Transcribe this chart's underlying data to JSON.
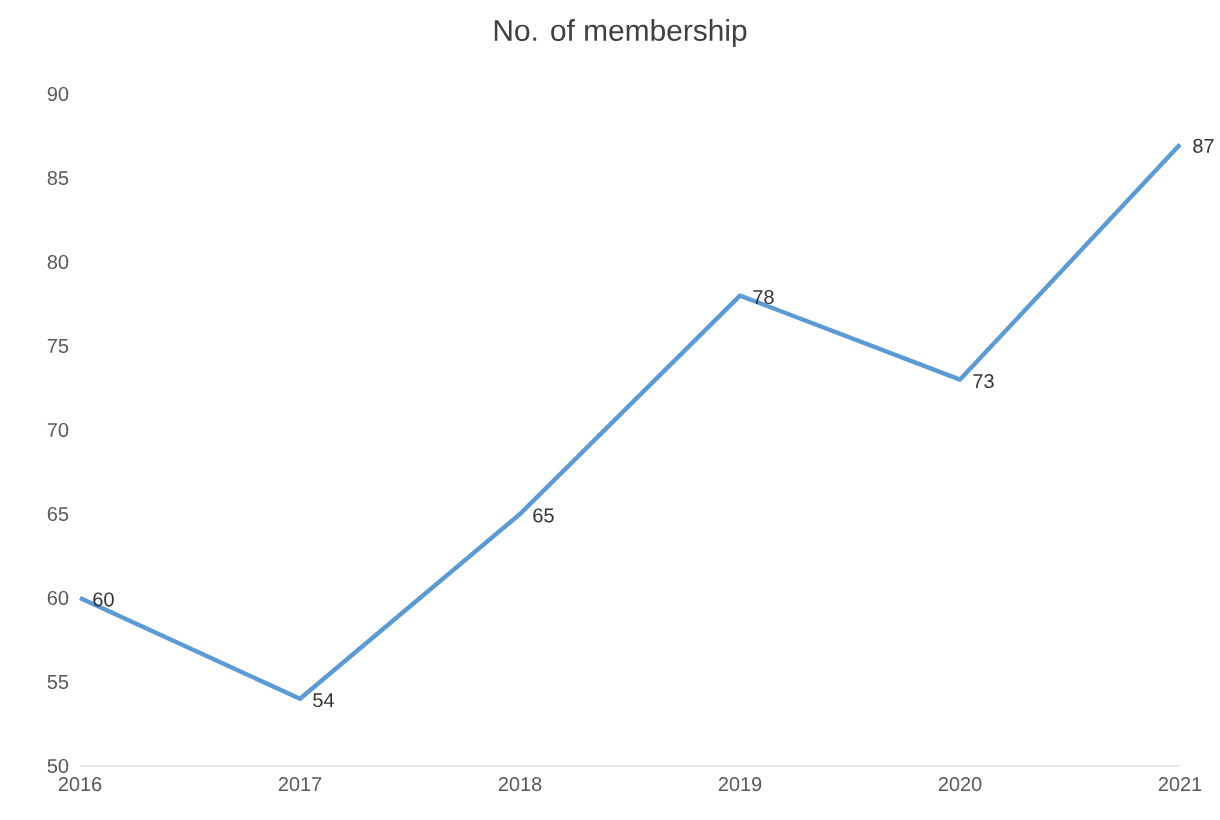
{
  "chart_data": {
    "type": "line",
    "title": "No. of membership",
    "x": [
      2016,
      2017,
      2018,
      2019,
      2020,
      2021
    ],
    "values": [
      60,
      54,
      65,
      78,
      73,
      87
    ],
    "color": "#5b9bd5",
    "xlim": [
      2016,
      2021
    ],
    "xticks": [
      2016,
      2017,
      2018,
      2019,
      2020,
      2021
    ],
    "ylim": [
      50,
      90
    ],
    "yticks": [
      50,
      55,
      60,
      65,
      70,
      75,
      80,
      85,
      90
    ],
    "data_labels": true
  }
}
